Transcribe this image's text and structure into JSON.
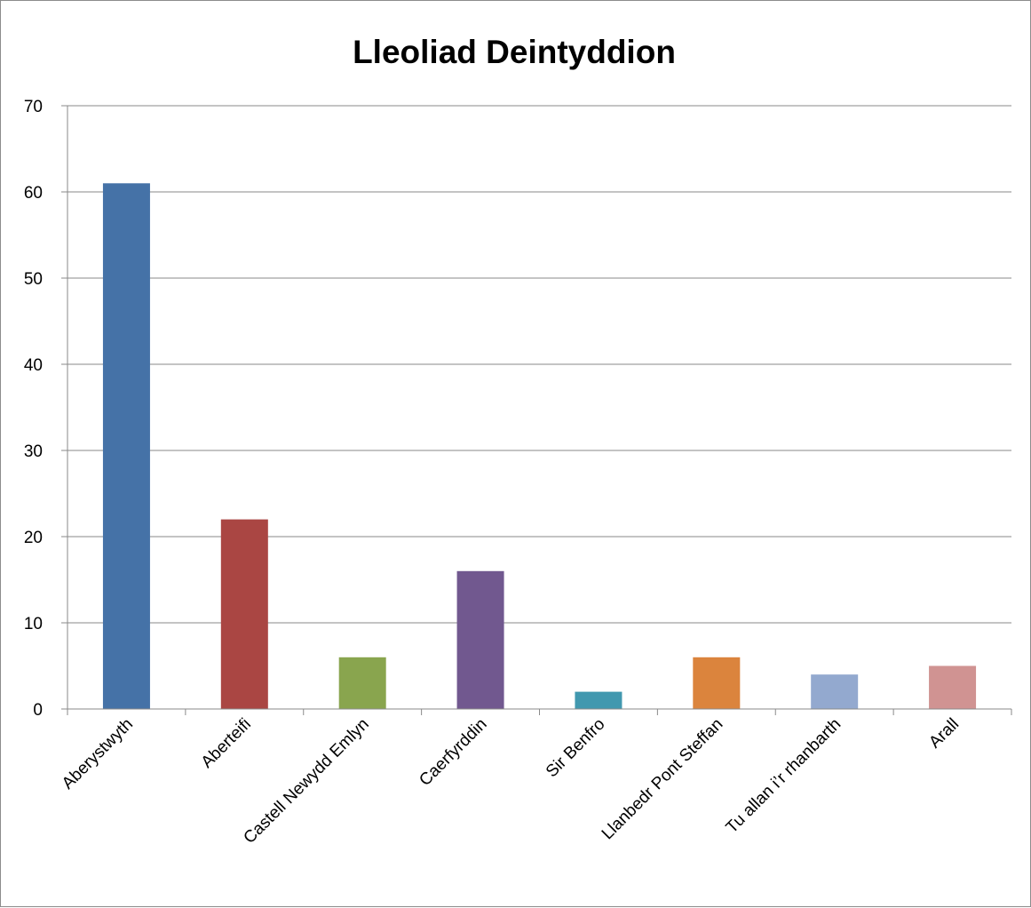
{
  "chart_data": {
    "type": "bar",
    "title": "Lleoliad Deintyddion",
    "categories": [
      "Aberystwyth",
      "Aberteifi",
      "Castell Newydd Emlyn",
      "Caerfyrddin",
      "Sir Benfro",
      "Llanbedr Pont Steffan",
      "Tu allan i’r rhanbarth",
      "Arall"
    ],
    "values": [
      61,
      22,
      6,
      16,
      2,
      6,
      4,
      5
    ],
    "colors": [
      "#4572a7",
      "#aa4643",
      "#89a54e",
      "#71588f",
      "#4198af",
      "#db843d",
      "#93a9cf",
      "#d09392"
    ],
    "xlabel": "",
    "ylabel": "",
    "ylim": [
      0,
      70
    ],
    "yticks": [
      0,
      10,
      20,
      30,
      40,
      50,
      60,
      70
    ],
    "grid": true,
    "legend": "none"
  }
}
